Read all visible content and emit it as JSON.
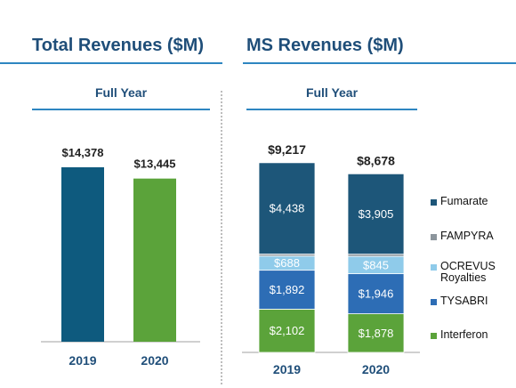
{
  "header": {
    "left_title": "Total Revenues ($M)",
    "right_title": "MS Revenues ($M)"
  },
  "left_panel": {
    "subtitle": "Full Year"
  },
  "right_panel": {
    "subtitle": "Full Year"
  },
  "colors": {
    "title": "#1f4e79",
    "bar_2019": "#0e5a7e",
    "bar_2020": "#5ba33a",
    "Fumarate": "#1d5679",
    "FAMPYRA": "#8c959c",
    "OCREVUS Royalties": "#8fcbea",
    "TYSABRI": "#2d6db5",
    "Interferon": "#5ba33a"
  },
  "chart_data": [
    {
      "type": "bar",
      "categories": [
        "2019",
        "2020"
      ],
      "values": [
        14378,
        13445
      ],
      "value_labels": [
        "$14,378",
        "$13,445"
      ],
      "title": "Full Year",
      "ylim": [
        0,
        22000
      ]
    },
    {
      "type": "bar",
      "stacked": true,
      "categories": [
        "2019",
        "2020"
      ],
      "totals": [
        9217,
        8678
      ],
      "total_labels": [
        "$9,217",
        "$8,678"
      ],
      "series": [
        {
          "name": "Interferon",
          "values": [
            2102,
            1878
          ],
          "labels": [
            "$2,102",
            "$1,878"
          ]
        },
        {
          "name": "TYSABRI",
          "values": [
            1892,
            1946
          ],
          "labels": [
            "$1,892",
            "$1,946"
          ]
        },
        {
          "name": "OCREVUS Royalties",
          "values": [
            688,
            845
          ],
          "labels": [
            "$688",
            "$845"
          ]
        },
        {
          "name": "FAMPYRA",
          "values": [
            97,
            104
          ],
          "labels": [
            "",
            ""
          ]
        },
        {
          "name": "Fumarate",
          "values": [
            4438,
            3905
          ],
          "labels": [
            "$4,438",
            "$3,905"
          ]
        }
      ],
      "title": "Full Year",
      "legend": "right",
      "legend_order": [
        "Fumarate",
        "FAMPYRA",
        "OCREVUS Royalties",
        "TYSABRI",
        "Interferon"
      ],
      "ylim": [
        0,
        9600
      ]
    }
  ]
}
